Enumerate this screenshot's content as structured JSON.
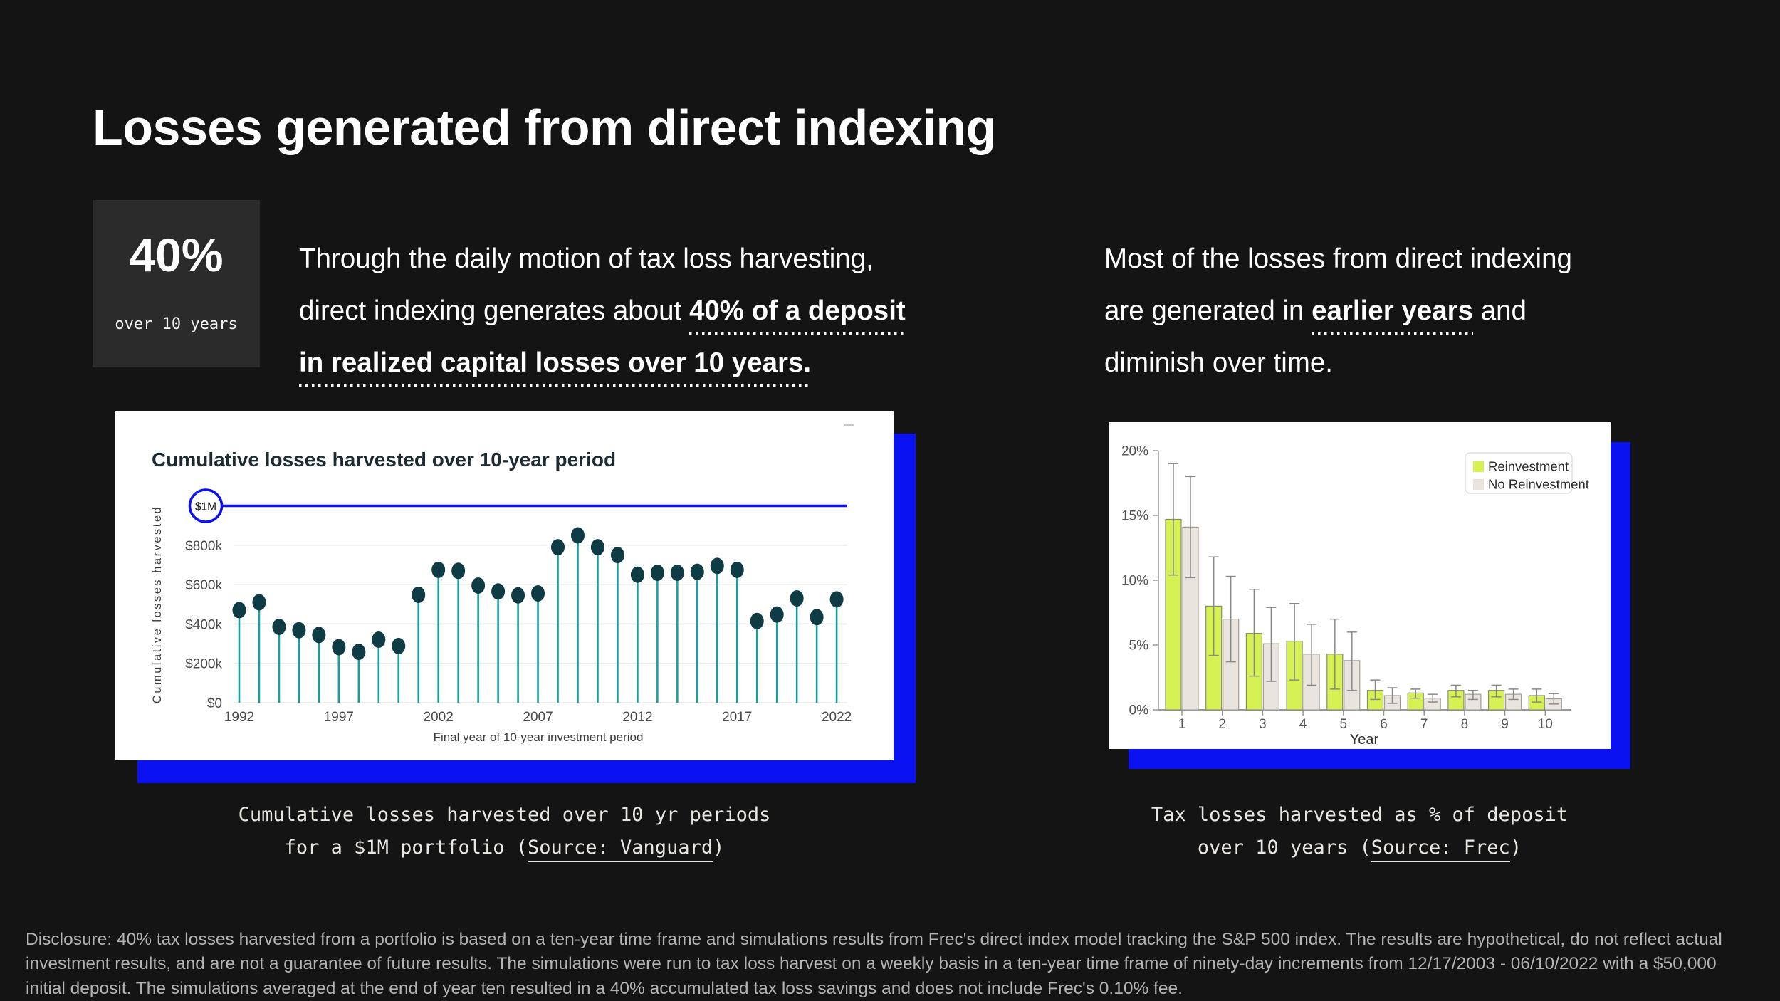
{
  "page": {
    "bg": "#141414",
    "accent_blue": "#0b12f2",
    "card_bg": "#ffffff",
    "stat_box_bg": "#2b2b2b"
  },
  "header": {
    "title": "Losses generated from direct indexing"
  },
  "stat": {
    "value": "40%",
    "caption": "over 10 years"
  },
  "intro": {
    "left": {
      "segments": [
        {
          "t": "Through the daily motion of tax loss harvesting,",
          "br": true
        },
        {
          "t": "direct indexing generates about "
        },
        {
          "t": "40% of a deposit",
          "b": true,
          "u": true,
          "br": true
        },
        {
          "t": "in realized capital losses over 10 years.",
          "b": true,
          "u": true
        }
      ]
    },
    "right": {
      "segments": [
        {
          "t": "Most of the losses from direct indexing",
          "br": true
        },
        {
          "t": "are generated in "
        },
        {
          "t": "earlier years",
          "b": true,
          "u": true
        },
        {
          "t": " and",
          "br": true
        },
        {
          "t": "diminish over time."
        }
      ]
    }
  },
  "captions": {
    "left": {
      "segments": [
        {
          "t": "Cumulative losses harvested over 10 yr periods",
          "br": true
        },
        {
          "t": "for a $1M portfolio ("
        },
        {
          "t": "Source: Vanguard",
          "link": true
        },
        {
          "t": ")"
        }
      ]
    },
    "right": {
      "segments": [
        {
          "t": "Tax losses harvested as % of deposit",
          "br": true
        },
        {
          "t": "over 10 years ("
        },
        {
          "t": "Source: Frec",
          "link": true
        },
        {
          "t": ")"
        }
      ]
    }
  },
  "disclosure": {
    "text": "Disclosure: 40% tax losses harvested from a portfolio is based on a ten-year time frame and simulations results from Frec's direct index model tracking the S&P 500 index. The results are hypothetical, do not reflect actual investment results, and are not a guarantee of future results. The simulations were run to tax loss harvest on a weekly basis in a ten-year time frame of ninety-day increments from 12/17/2003 - 06/10/2022 with a $50,000 initial deposit. The simulations averaged at the end of year ten resulted in a 40% accumulated tax loss savings and does not include Frec's 0.10% fee."
  },
  "chart_data": [
    {
      "type": "lollipop",
      "title": "Cumulative losses harvested over 10-year period",
      "xlabel": "Final year of 10-year investment period",
      "ylabel": "Cumulative losses harvested",
      "x": [
        1992,
        1993,
        1994,
        1995,
        1996,
        1997,
        1998,
        1999,
        2000,
        2001,
        2002,
        2003,
        2004,
        2005,
        2006,
        2007,
        2008,
        2009,
        2010,
        2011,
        2012,
        2013,
        2014,
        2015,
        2016,
        2017,
        2018,
        2019,
        2020,
        2021,
        2022
      ],
      "values_thousands": [
        470,
        510,
        385,
        368,
        344,
        282,
        258,
        320,
        288,
        548,
        675,
        670,
        595,
        565,
        545,
        555,
        790,
        850,
        790,
        750,
        650,
        660,
        660,
        665,
        695,
        675,
        415,
        448,
        530,
        435,
        525
      ],
      "unit": "$ thousands",
      "ylim_thousands": [
        0,
        1000
      ],
      "yticks": {
        "values": [
          0,
          200,
          400,
          600,
          800
        ],
        "labels": [
          "$0",
          "$200k",
          "$400k",
          "$600k",
          "$800k"
        ]
      },
      "xticks": [
        1992,
        1997,
        2002,
        2007,
        2012,
        2017,
        2022
      ],
      "grid": true,
      "reference_line": {
        "label": "$1M",
        "value_thousands": 1000
      },
      "colors": {
        "stem": "#16a1a1",
        "dot": "#0f3c44",
        "reference": "#0b12f2",
        "title": "#1d2b33",
        "axis_text": "#4a4a4a",
        "grid": "#e9e9e9",
        "menu_dash": "#c9c9c9"
      }
    },
    {
      "type": "bar",
      "title": "",
      "xlabel": "Year",
      "ylabel": "",
      "categories": [
        1,
        2,
        3,
        4,
        5,
        6,
        7,
        8,
        9,
        10
      ],
      "series": [
        {
          "name": "Reinvestment",
          "color": "#d5f154",
          "border": "#8b8b7a",
          "values": [
            14.7,
            8.0,
            5.9,
            5.3,
            4.3,
            1.5,
            1.3,
            1.5,
            1.5,
            1.1
          ],
          "err_low": [
            10.4,
            4.2,
            2.6,
            2.3,
            1.6,
            0.8,
            0.9,
            1.0,
            1.0,
            0.6
          ],
          "err_high": [
            19.0,
            11.8,
            9.3,
            8.2,
            7.0,
            2.3,
            1.6,
            1.9,
            1.9,
            1.6
          ]
        },
        {
          "name": "No Reinvestment",
          "color": "#e9e5de",
          "border": "#a39d94",
          "values": [
            14.1,
            7.0,
            5.1,
            4.3,
            3.8,
            1.1,
            0.9,
            1.2,
            1.2,
            0.85
          ],
          "err_low": [
            10.2,
            3.7,
            2.2,
            1.9,
            1.5,
            0.5,
            0.6,
            0.8,
            0.8,
            0.45
          ],
          "err_high": [
            18.0,
            10.3,
            7.9,
            6.6,
            6.0,
            1.7,
            1.2,
            1.5,
            1.6,
            1.25
          ]
        }
      ],
      "ylim": [
        0,
        20
      ],
      "yticks": {
        "values": [
          0,
          5,
          10,
          15,
          20
        ],
        "labels": [
          "0%",
          "5%",
          "10%",
          "15%",
          "20%"
        ]
      },
      "error_bars": true,
      "legend_position": "top-right",
      "grid": false,
      "colors": {
        "axis": "#999999",
        "axis_text": "#555555",
        "error": "#8a8a8a",
        "legend_border": "#e0e0e0",
        "legend_text": "#2b2b2b"
      }
    }
  ]
}
